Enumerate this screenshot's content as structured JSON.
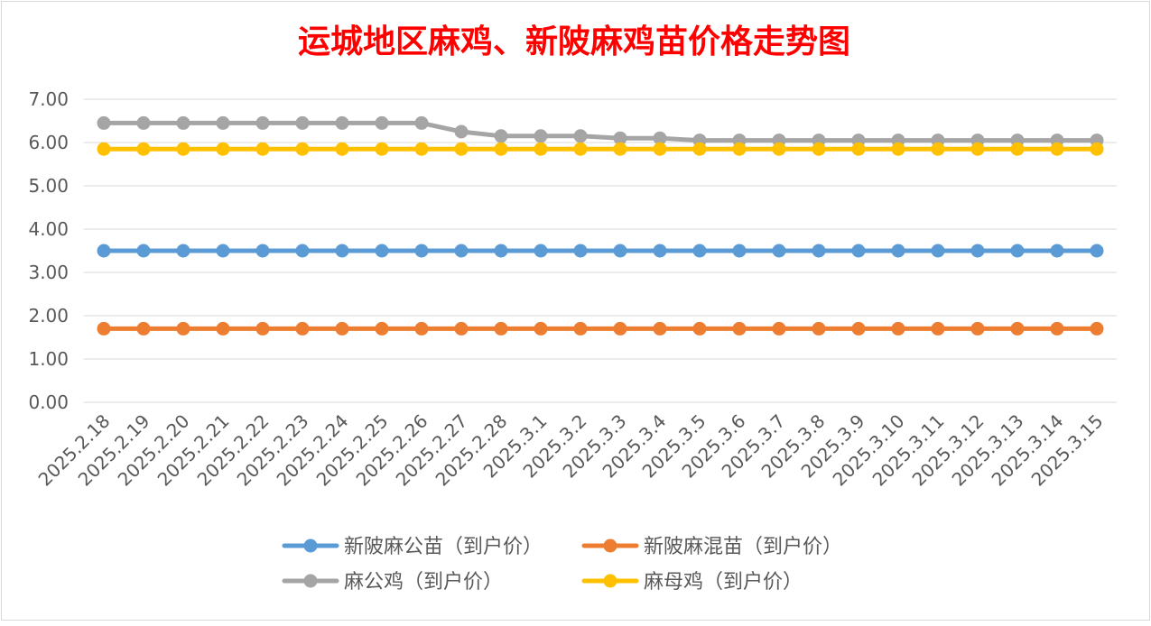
{
  "chart_data": {
    "type": "line",
    "title": "运城地区麻鸡、新陂麻鸡苗价格走势图",
    "xlabel": "",
    "ylabel": "",
    "ylim": [
      0,
      7
    ],
    "y_ticks": [
      "0.00",
      "1.00",
      "2.00",
      "3.00",
      "4.00",
      "5.00",
      "6.00",
      "7.00"
    ],
    "grid": true,
    "legend_position": "bottom",
    "categories": [
      "2025.2.18",
      "2025.2.19",
      "2025.2.20",
      "2025.2.21",
      "2025.2.22",
      "2025.2.23",
      "2025.2.24",
      "2025.2.25",
      "2025.2.26",
      "2025.2.27",
      "2025.2.28",
      "2025.3.1",
      "2025.3.2",
      "2025.3.3",
      "2025.3.4",
      "2025.3.5",
      "2025.3.6",
      "2025.3.7",
      "2025.3.8",
      "2025.3.9",
      "2025.3.10",
      "2025.3.11",
      "2025.3.12",
      "2025.3.13",
      "2025.3.14",
      "2025.3.15"
    ],
    "series": [
      {
        "name": "新陂麻公苗（到户价）",
        "color": "#5B9BD5",
        "values": [
          3.5,
          3.5,
          3.5,
          3.5,
          3.5,
          3.5,
          3.5,
          3.5,
          3.5,
          3.5,
          3.5,
          3.5,
          3.5,
          3.5,
          3.5,
          3.5,
          3.5,
          3.5,
          3.5,
          3.5,
          3.5,
          3.5,
          3.5,
          3.5,
          3.5,
          3.5
        ]
      },
      {
        "name": "新陂麻混苗（到户价）",
        "color": "#ED7D31",
        "values": [
          1.7,
          1.7,
          1.7,
          1.7,
          1.7,
          1.7,
          1.7,
          1.7,
          1.7,
          1.7,
          1.7,
          1.7,
          1.7,
          1.7,
          1.7,
          1.7,
          1.7,
          1.7,
          1.7,
          1.7,
          1.7,
          1.7,
          1.7,
          1.7,
          1.7,
          1.7
        ]
      },
      {
        "name": "麻公鸡（到户价）",
        "color": "#A5A5A5",
        "values": [
          6.45,
          6.45,
          6.45,
          6.45,
          6.45,
          6.45,
          6.45,
          6.45,
          6.45,
          6.25,
          6.15,
          6.15,
          6.15,
          6.1,
          6.1,
          6.05,
          6.05,
          6.05,
          6.05,
          6.05,
          6.05,
          6.05,
          6.05,
          6.05,
          6.05,
          6.05
        ]
      },
      {
        "name": "麻母鸡（到户价）",
        "color": "#FFC000",
        "values": [
          5.85,
          5.85,
          5.85,
          5.85,
          5.85,
          5.85,
          5.85,
          5.85,
          5.85,
          5.85,
          5.85,
          5.85,
          5.85,
          5.85,
          5.85,
          5.85,
          5.85,
          5.85,
          5.85,
          5.85,
          5.85,
          5.85,
          5.85,
          5.85,
          5.85,
          5.85
        ]
      }
    ]
  },
  "colors": {
    "title": "#FF0000",
    "axis_text": "#595959",
    "grid": "#D9D9D9",
    "border": "#D9D9D9"
  }
}
